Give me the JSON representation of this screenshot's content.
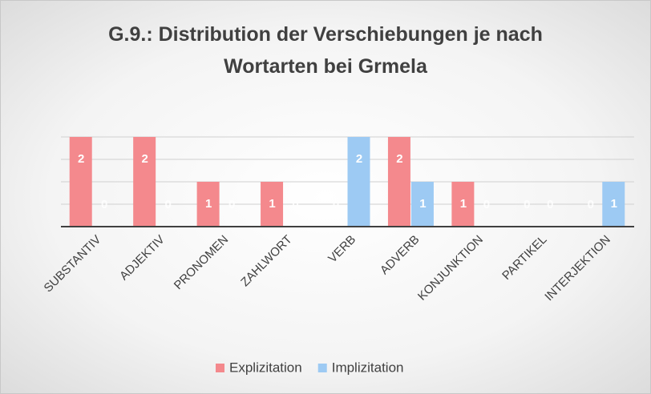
{
  "chart_data": {
    "type": "bar",
    "title": "G.9.: Distribution der Verschiebungen je nach Wortarten bei Grmela",
    "categories": [
      "SUBSTANTIV",
      "ADJEKTIV",
      "PRONOMEN",
      "ZAHLWORT",
      "VERB",
      "ADVERB",
      "KONJUNKTION",
      "PARTIKEL",
      "INTERJEKTION"
    ],
    "series": [
      {
        "name": "Explizitation",
        "color": "#f4898d",
        "values": [
          2,
          2,
          1,
          1,
          0,
          2,
          1,
          0,
          0
        ]
      },
      {
        "name": "Implizitation",
        "color": "#9dcaf3",
        "values": [
          0,
          0,
          0,
          0,
          2,
          1,
          0,
          0,
          1
        ]
      }
    ],
    "ylim": [
      0,
      2
    ],
    "yticks": [
      0,
      0.5,
      1,
      1.5,
      2
    ],
    "grid": true,
    "legend": "bottom"
  }
}
